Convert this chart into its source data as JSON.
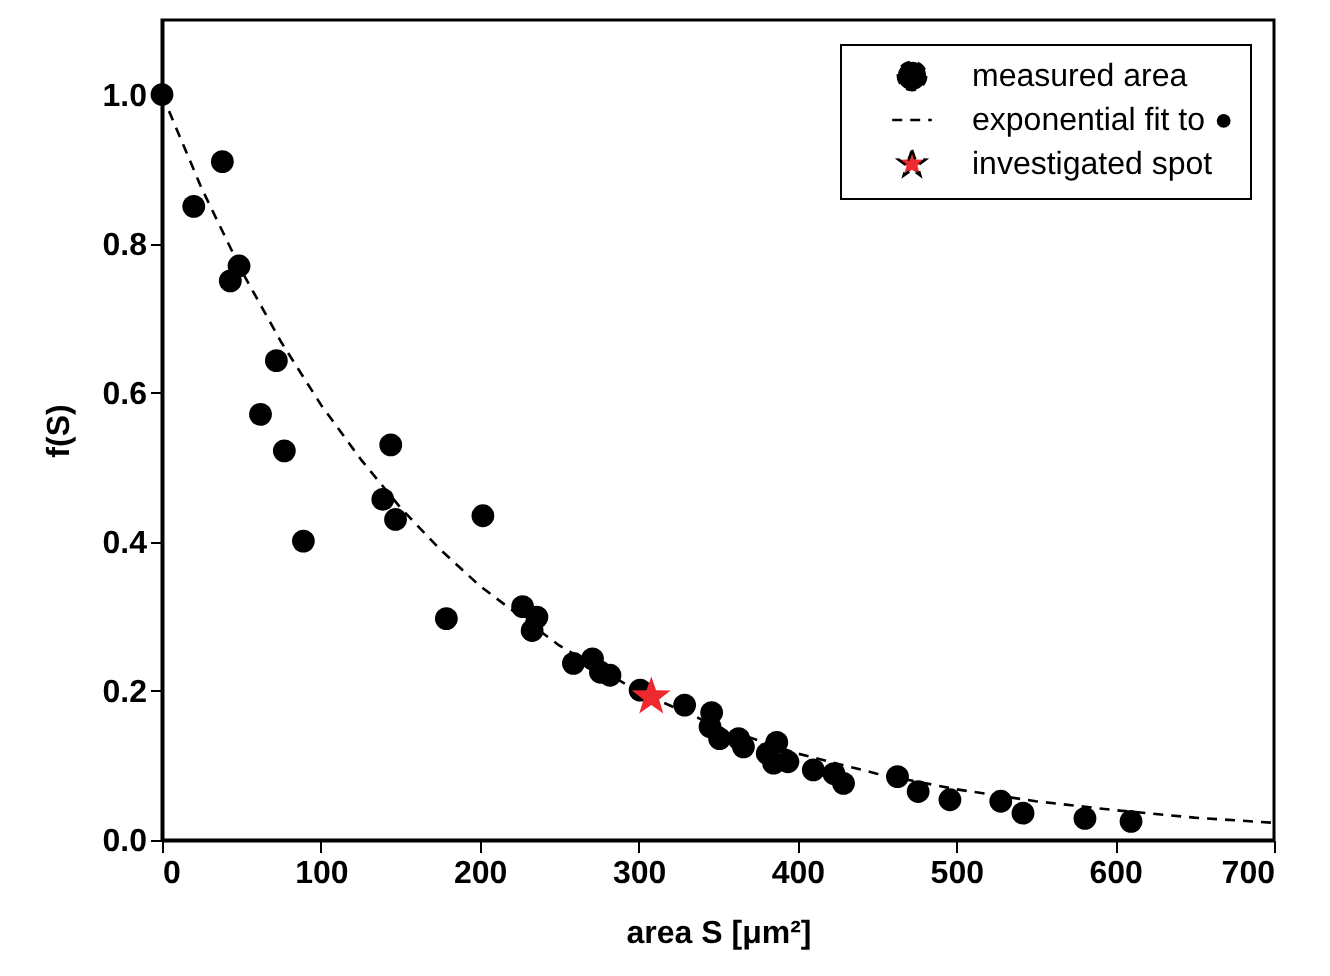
{
  "chart_data": {
    "type": "scatter",
    "xlabel": "area S [μm²]",
    "ylabel": "f(S)",
    "xlim": [
      0,
      700
    ],
    "xticks": [
      0,
      100,
      200,
      300,
      400,
      500,
      600,
      700
    ],
    "ylim": [
      0,
      1.1
    ],
    "yticks": [
      {
        "value": 0,
        "label": "0.0"
      },
      {
        "value": 0.2,
        "label": "0.2"
      },
      {
        "value": 0.4,
        "label": "0.4"
      },
      {
        "value": 0.6,
        "label": "0.6"
      },
      {
        "value": 0.8,
        "label": "0.8"
      },
      {
        "value": 1.0,
        "label": "1.0"
      }
    ],
    "grid": false,
    "legend": "top right",
    "series": [
      {
        "name": "measured area",
        "color": "#000000",
        "type": "scatter",
        "marker": "circle",
        "x": [
          0,
          38,
          20,
          48.5,
          43,
          72,
          62,
          77,
          89,
          139,
          144,
          147,
          179,
          202,
          227,
          236,
          233,
          259,
          271,
          276,
          282,
          301,
          329,
          346,
          345,
          351,
          363,
          366,
          387,
          381,
          385,
          394,
          410,
          423,
          429,
          463,
          476,
          496,
          528,
          542,
          581,
          610
        ],
        "values": [
          1.0,
          0.91,
          0.85,
          0.77,
          0.75,
          0.643,
          0.571,
          0.522,
          0.401,
          0.457,
          0.53,
          0.43,
          0.297,
          0.435,
          0.313,
          0.299,
          0.281,
          0.237,
          0.243,
          0.225,
          0.221,
          0.201,
          0.181,
          0.171,
          0.152,
          0.136,
          0.136,
          0.125,
          0.131,
          0.116,
          0.103,
          0.105,
          0.094,
          0.089,
          0.076,
          0.085,
          0.065,
          0.054,
          0.052,
          0.036,
          0.029,
          0.025
        ]
      },
      {
        "name": "exponential fit to ●",
        "color": "#000000",
        "type": "line",
        "marker": "none",
        "line_style": "dashed",
        "x": [
          0,
          25,
          50,
          75,
          100,
          125,
          150,
          175,
          200,
          250,
          300,
          350,
          400,
          450,
          500,
          550,
          600,
          650,
          700
        ],
        "values": [
          1.0,
          0.874,
          0.764,
          0.668,
          0.584,
          0.511,
          0.446,
          0.39,
          0.341,
          0.261,
          0.199,
          0.152,
          0.116,
          0.089,
          0.068,
          0.052,
          0.04,
          0.03,
          0.023
        ]
      },
      {
        "name": "investigated spot",
        "color": "#ee2a2f",
        "type": "scatter",
        "marker": "star",
        "x": [
          308
        ],
        "values": [
          0.192
        ]
      }
    ]
  }
}
